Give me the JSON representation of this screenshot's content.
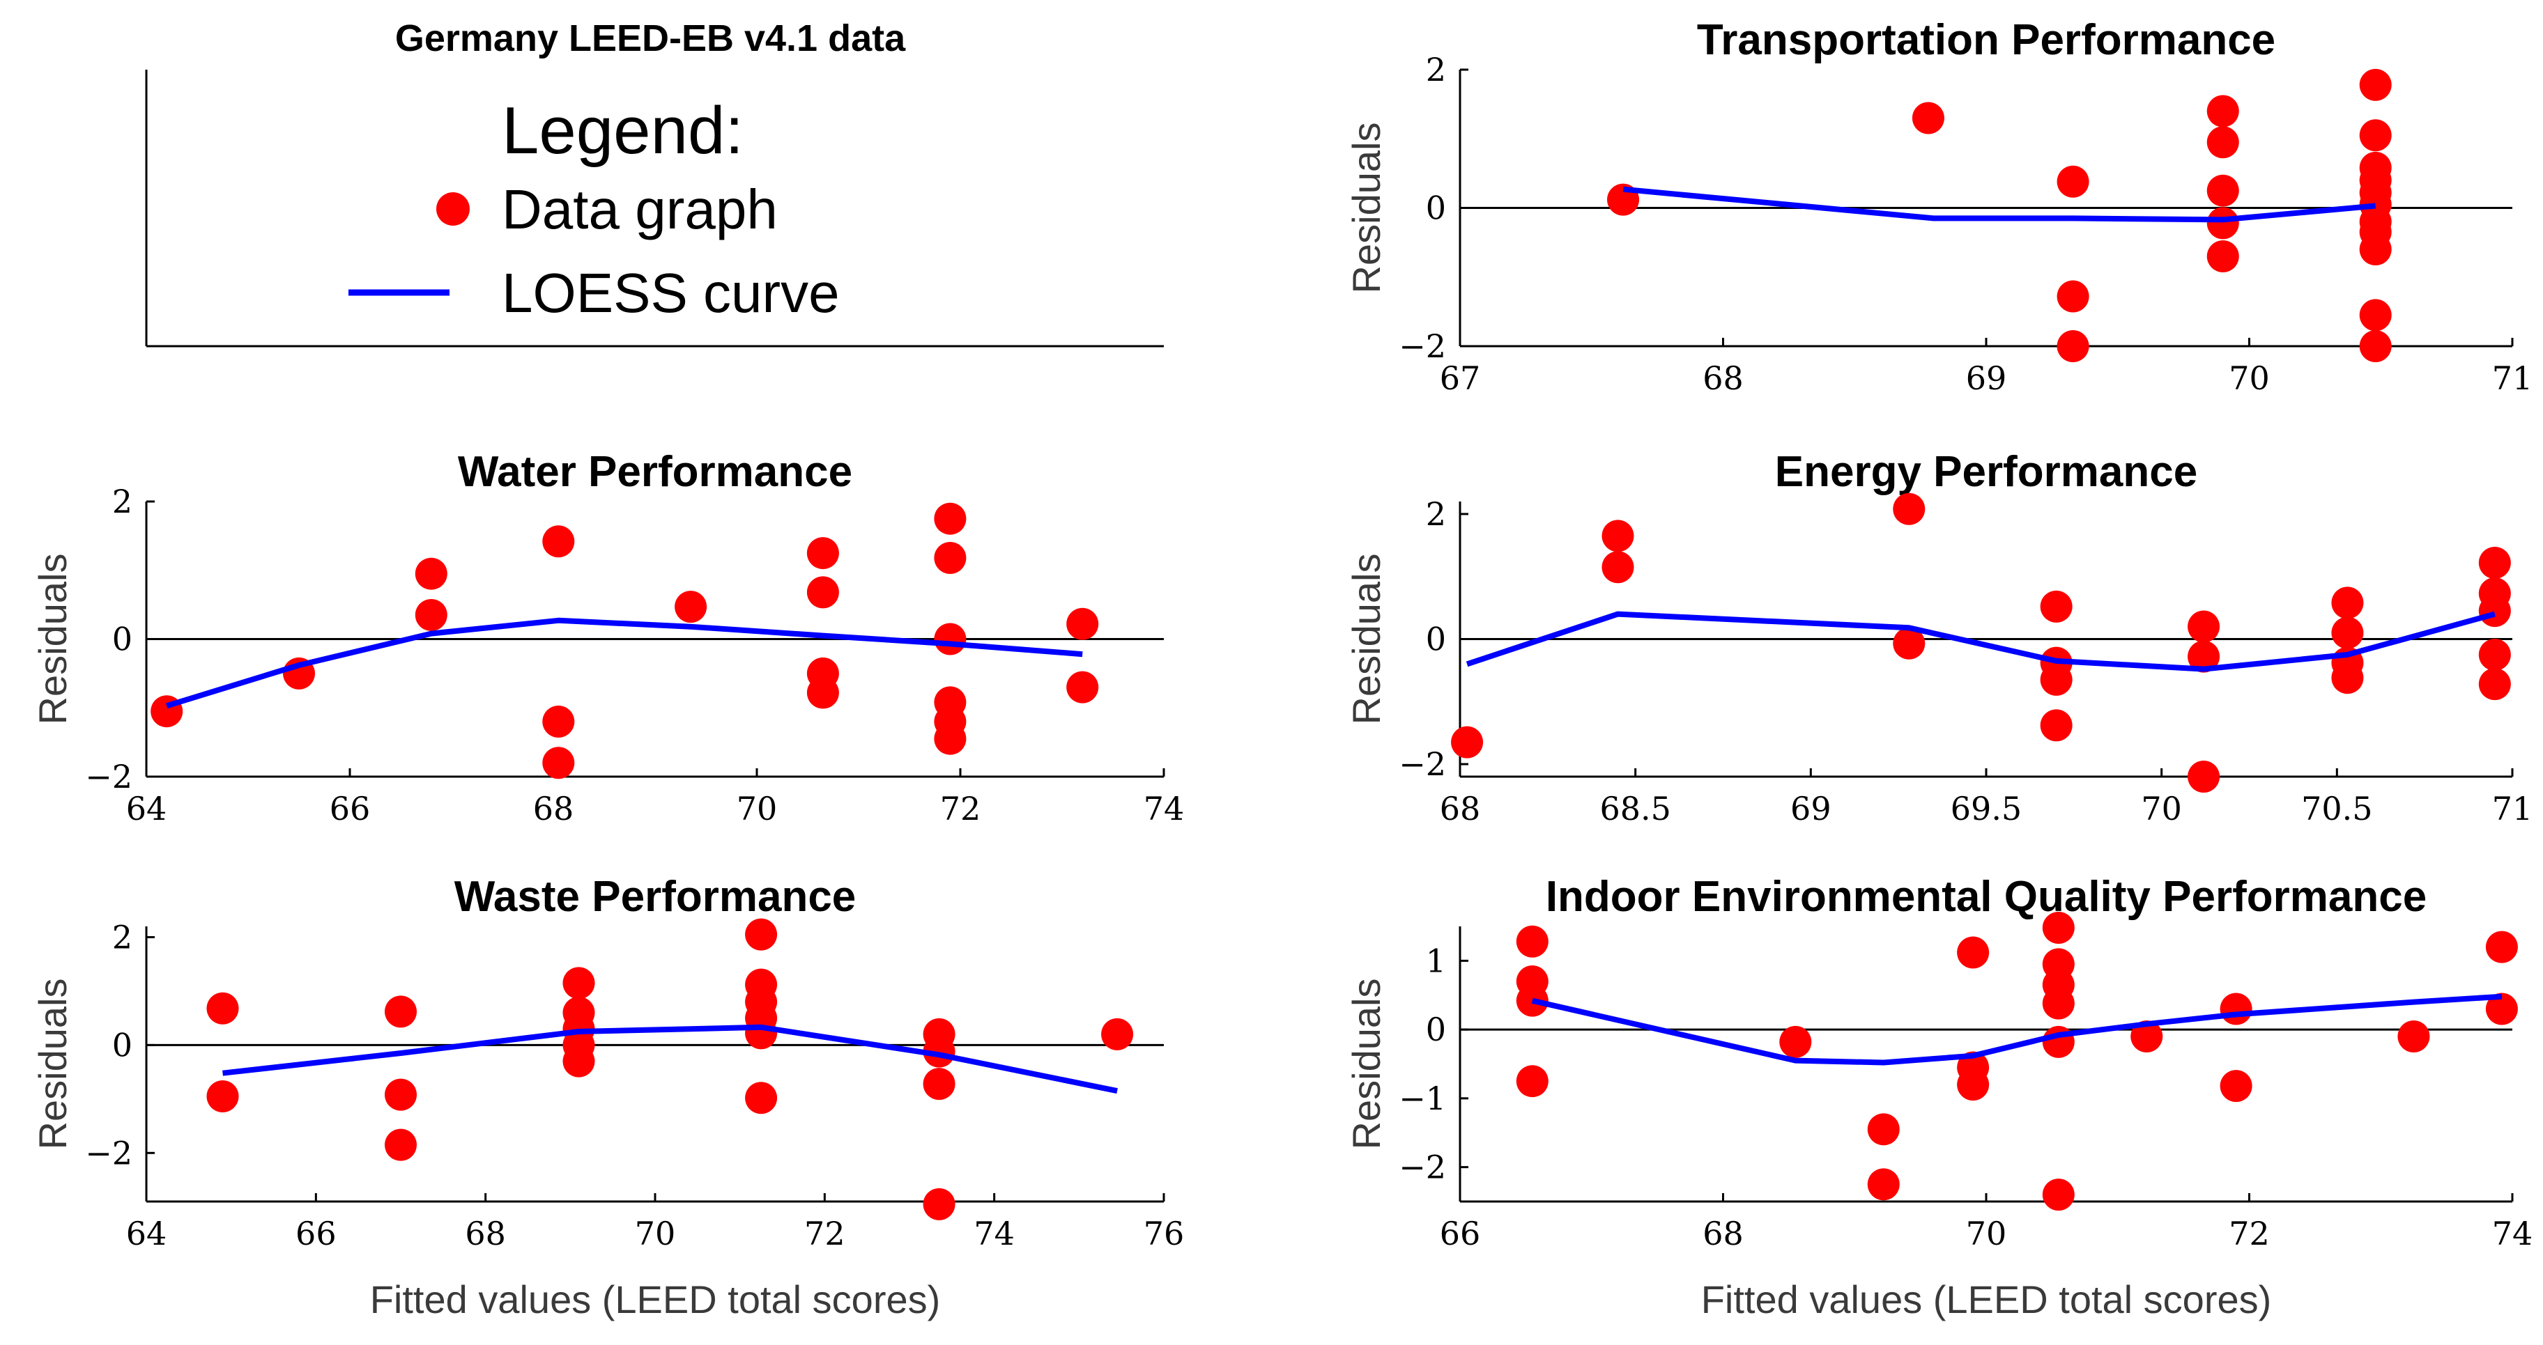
{
  "colors": {
    "data": "#ff0000",
    "loess": "#0000ff",
    "axis": "#000000",
    "zero": "#000000"
  },
  "legend_panel": {
    "title": "Germany LEED-EB v4.1 data",
    "legend_title": "Legend:",
    "data_label": "Data graph",
    "loess_label": "LOESS curve"
  },
  "chart_data": [
    {
      "type": "scatter",
      "title": "Transportation Performance",
      "xlabel": "",
      "ylabel": "Residuals",
      "xlim": [
        67,
        71
      ],
      "ylim": [
        -2,
        2
      ],
      "xticks": [
        67,
        68,
        69,
        70,
        71
      ],
      "xtick_labels": [
        "67",
        "68",
        "69",
        "70",
        "71"
      ],
      "yticks": [
        -2,
        0,
        2
      ],
      "ytick_labels": [
        "−2",
        "0",
        "2"
      ],
      "points": [
        [
          67.62,
          0.12
        ],
        [
          68.78,
          1.3
        ],
        [
          69.33,
          0.38
        ],
        [
          69.33,
          -1.28
        ],
        [
          69.33,
          -2.0
        ],
        [
          69.9,
          1.4
        ],
        [
          69.9,
          0.95
        ],
        [
          69.9,
          0.25
        ],
        [
          69.9,
          -0.22
        ],
        [
          69.9,
          -0.7
        ],
        [
          70.48,
          1.78
        ],
        [
          70.48,
          1.05
        ],
        [
          70.48,
          0.58
        ],
        [
          70.48,
          0.4
        ],
        [
          70.48,
          0.22
        ],
        [
          70.48,
          0.05
        ],
        [
          70.48,
          -0.2
        ],
        [
          70.48,
          -0.35
        ],
        [
          70.48,
          -0.6
        ],
        [
          70.48,
          -1.55
        ],
        [
          70.48,
          -2.0
        ]
      ],
      "loess": [
        [
          67.62,
          0.27
        ],
        [
          68.8,
          -0.15
        ],
        [
          69.33,
          -0.15
        ],
        [
          69.9,
          -0.17
        ],
        [
          70.48,
          0.03
        ]
      ]
    },
    {
      "type": "scatter",
      "title": "Water Performance",
      "xlabel": "",
      "ylabel": "Residuals",
      "xlim": [
        64,
        74
      ],
      "ylim": [
        -2,
        2
      ],
      "xticks": [
        64,
        66,
        68,
        70,
        72,
        74
      ],
      "xtick_labels": [
        "64",
        "66",
        "68",
        "70",
        "72",
        "74"
      ],
      "yticks": [
        -2,
        0,
        2
      ],
      "ytick_labels": [
        "−2",
        "0",
        "2"
      ],
      "points": [
        [
          64.2,
          -1.05
        ],
        [
          65.5,
          -0.5
        ],
        [
          66.8,
          0.95
        ],
        [
          66.8,
          0.35
        ],
        [
          68.05,
          1.42
        ],
        [
          68.05,
          -1.2
        ],
        [
          68.05,
          -1.8
        ],
        [
          69.35,
          0.47
        ],
        [
          70.65,
          1.25
        ],
        [
          70.65,
          0.68
        ],
        [
          70.65,
          -0.5
        ],
        [
          70.65,
          -0.78
        ],
        [
          71.9,
          1.75
        ],
        [
          71.9,
          1.18
        ],
        [
          71.9,
          0.0
        ],
        [
          71.9,
          -0.92
        ],
        [
          71.9,
          -1.2
        ],
        [
          71.9,
          -1.45
        ],
        [
          73.2,
          0.22
        ],
        [
          73.2,
          -0.7
        ]
      ],
      "loess": [
        [
          64.2,
          -0.97
        ],
        [
          65.5,
          -0.38
        ],
        [
          66.8,
          0.08
        ],
        [
          68.05,
          0.27
        ],
        [
          69.35,
          0.18
        ],
        [
          70.65,
          0.05
        ],
        [
          71.9,
          -0.07
        ],
        [
          73.2,
          -0.22
        ]
      ]
    },
    {
      "type": "scatter",
      "title": "Energy Performance",
      "xlabel": "",
      "ylabel": "Residuals",
      "xlim": [
        68,
        71
      ],
      "ylim": [
        -2.2,
        2.2
      ],
      "xticks": [
        68,
        68.5,
        69,
        69.5,
        70,
        70.5,
        71
      ],
      "xtick_labels": [
        "68",
        "68.5",
        "69",
        "69.5",
        "70",
        "70.5",
        "71"
      ],
      "yticks": [
        -2,
        0,
        2
      ],
      "ytick_labels": [
        "−2",
        "0",
        "2"
      ],
      "points": [
        [
          68.02,
          -1.65
        ],
        [
          68.45,
          1.65
        ],
        [
          68.45,
          1.15
        ],
        [
          69.28,
          2.08
        ],
        [
          69.28,
          -0.07
        ],
        [
          69.7,
          0.52
        ],
        [
          69.7,
          -0.38
        ],
        [
          69.7,
          -0.65
        ],
        [
          69.7,
          -1.38
        ],
        [
          70.12,
          0.2
        ],
        [
          70.12,
          -0.28
        ],
        [
          70.12,
          -2.2
        ],
        [
          70.53,
          0.58
        ],
        [
          70.53,
          0.1
        ],
        [
          70.53,
          -0.38
        ],
        [
          70.53,
          -0.62
        ],
        [
          70.95,
          1.22
        ],
        [
          70.95,
          0.73
        ],
        [
          70.95,
          0.45
        ],
        [
          70.95,
          -0.25
        ],
        [
          70.95,
          -0.72
        ]
      ],
      "loess": [
        [
          68.02,
          -0.4
        ],
        [
          68.45,
          0.4
        ],
        [
          69.28,
          0.18
        ],
        [
          69.7,
          -0.35
        ],
        [
          70.12,
          -0.48
        ],
        [
          70.53,
          -0.25
        ],
        [
          70.95,
          0.4
        ]
      ]
    },
    {
      "type": "scatter",
      "title": "Waste Performance",
      "xlabel": "Fitted values (LEED total scores)",
      "ylabel": "Residuals",
      "xlim": [
        64,
        76
      ],
      "ylim": [
        -2.9,
        2.2
      ],
      "xticks": [
        64,
        66,
        68,
        70,
        72,
        74,
        76
      ],
      "xtick_labels": [
        "64",
        "66",
        "68",
        "70",
        "72",
        "74",
        "76"
      ],
      "yticks": [
        -2,
        0,
        2
      ],
      "ytick_labels": [
        "−2",
        "0",
        "2"
      ],
      "points": [
        [
          64.9,
          0.68
        ],
        [
          64.9,
          -0.95
        ],
        [
          67.0,
          0.62
        ],
        [
          67.0,
          -0.92
        ],
        [
          67.0,
          -1.85
        ],
        [
          69.1,
          1.15
        ],
        [
          69.1,
          0.6
        ],
        [
          69.1,
          0.3
        ],
        [
          69.1,
          0.0
        ],
        [
          69.1,
          -0.3
        ],
        [
          71.25,
          2.05
        ],
        [
          71.25,
          1.12
        ],
        [
          71.25,
          0.8
        ],
        [
          71.25,
          0.5
        ],
        [
          71.25,
          0.22
        ],
        [
          71.25,
          -0.98
        ],
        [
          73.35,
          0.2
        ],
        [
          73.35,
          -0.12
        ],
        [
          73.35,
          -0.72
        ],
        [
          73.35,
          -2.95
        ],
        [
          75.45,
          0.2
        ]
      ],
      "loess": [
        [
          64.9,
          -0.52
        ],
        [
          67.0,
          -0.15
        ],
        [
          69.1,
          0.25
        ],
        [
          71.25,
          0.33
        ],
        [
          73.35,
          -0.18
        ],
        [
          75.45,
          -0.85
        ]
      ]
    },
    {
      "type": "scatter",
      "title": "Indoor Environmental Quality Performance",
      "xlabel": "Fitted values (LEED total scores)",
      "ylabel": "Residuals",
      "xlim": [
        66,
        74
      ],
      "ylim": [
        -2.5,
        1.5
      ],
      "xticks": [
        66,
        68,
        70,
        72,
        74
      ],
      "xtick_labels": [
        "66",
        "68",
        "70",
        "72",
        "74"
      ],
      "yticks": [
        -2,
        -1,
        0,
        1
      ],
      "ytick_labels": [
        "−2",
        "−1",
        "0",
        "1"
      ],
      "points": [
        [
          66.55,
          1.28
        ],
        [
          66.55,
          0.7
        ],
        [
          66.55,
          0.42
        ],
        [
          66.55,
          -0.75
        ],
        [
          68.55,
          -0.18
        ],
        [
          69.22,
          -1.45
        ],
        [
          69.22,
          -2.25
        ],
        [
          69.9,
          1.12
        ],
        [
          69.9,
          -0.55
        ],
        [
          69.9,
          -0.8
        ],
        [
          70.55,
          1.48
        ],
        [
          70.55,
          0.95
        ],
        [
          70.55,
          0.65
        ],
        [
          70.55,
          0.38
        ],
        [
          70.55,
          -0.18
        ],
        [
          70.55,
          -2.4
        ],
        [
          71.22,
          -0.1
        ],
        [
          71.9,
          0.3
        ],
        [
          71.9,
          -0.82
        ],
        [
          73.25,
          -0.1
        ],
        [
          73.92,
          1.2
        ],
        [
          73.92,
          0.3
        ]
      ],
      "loess": [
        [
          66.55,
          0.42
        ],
        [
          68.55,
          -0.45
        ],
        [
          69.22,
          -0.48
        ],
        [
          69.9,
          -0.38
        ],
        [
          70.55,
          -0.08
        ],
        [
          71.22,
          0.08
        ],
        [
          71.9,
          0.22
        ],
        [
          73.25,
          0.4
        ],
        [
          73.92,
          0.48
        ]
      ]
    }
  ]
}
